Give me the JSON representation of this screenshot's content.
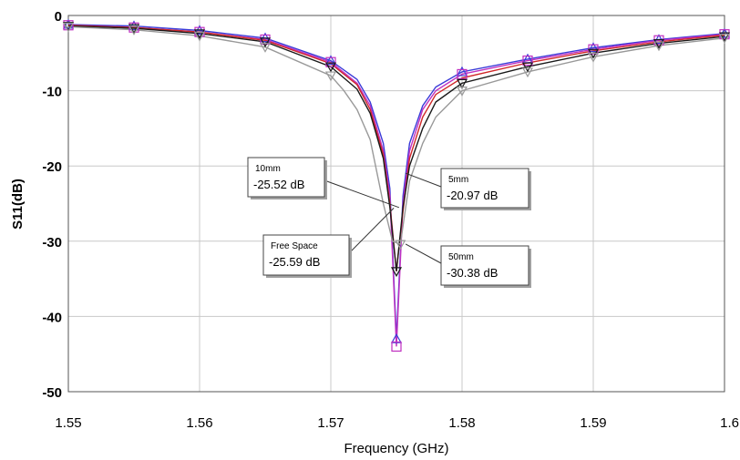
{
  "chart_data": {
    "type": "line",
    "title": "",
    "xlabel": "Frequency (GHz)",
    "ylabel": "S11(dB)",
    "xlim": [
      1.55,
      1.6
    ],
    "ylim": [
      -50,
      0
    ],
    "grid": true,
    "x_tick_labels": [
      "1.55",
      "1.56",
      "1.57",
      "1.58",
      "1.59",
      "1.6"
    ],
    "y_tick_labels": [
      "0",
      "-10",
      "-20",
      "-30",
      "-40",
      "-50"
    ],
    "series": [
      {
        "color": "#3a3ad8",
        "marker": "triangle-up",
        "points": [
          [
            1.55,
            -1.2
          ],
          [
            1.555,
            -1.4
          ],
          [
            1.56,
            -2.0
          ],
          [
            1.565,
            -3.0
          ],
          [
            1.57,
            -6.0
          ],
          [
            1.572,
            -8.5
          ],
          [
            1.573,
            -11.5
          ],
          [
            1.574,
            -17
          ],
          [
            1.5745,
            -23
          ],
          [
            1.575,
            -43
          ],
          [
            1.5755,
            -24
          ],
          [
            1.576,
            -17
          ],
          [
            1.577,
            -12
          ],
          [
            1.578,
            -9.5
          ],
          [
            1.58,
            -7.5
          ],
          [
            1.585,
            -5.8
          ],
          [
            1.59,
            -4.3
          ],
          [
            1.595,
            -3.2
          ],
          [
            1.6,
            -2.4
          ]
        ]
      },
      {
        "color": "#c030c0",
        "marker": "square",
        "points": [
          [
            1.55,
            -1.3
          ],
          [
            1.555,
            -1.6
          ],
          [
            1.56,
            -2.2
          ],
          [
            1.565,
            -3.2
          ],
          [
            1.57,
            -6.2
          ],
          [
            1.572,
            -9
          ],
          [
            1.573,
            -12
          ],
          [
            1.574,
            -18
          ],
          [
            1.5745,
            -24
          ],
          [
            1.575,
            -44
          ],
          [
            1.5755,
            -25
          ],
          [
            1.576,
            -18
          ],
          [
            1.577,
            -12.5
          ],
          [
            1.578,
            -10
          ],
          [
            1.58,
            -7.8
          ],
          [
            1.585,
            -6.0
          ],
          [
            1.59,
            -4.5
          ],
          [
            1.595,
            -3.3
          ],
          [
            1.6,
            -2.5
          ]
        ]
      },
      {
        "color": "#d02828",
        "marker": "none",
        "points": [
          [
            1.55,
            -1.3
          ],
          [
            1.555,
            -1.6
          ],
          [
            1.56,
            -2.2
          ],
          [
            1.565,
            -3.3
          ],
          [
            1.57,
            -6.4
          ],
          [
            1.572,
            -9.2
          ],
          [
            1.573,
            -12.5
          ],
          [
            1.574,
            -18.5
          ],
          [
            1.5745,
            -25
          ],
          [
            1.575,
            -34
          ],
          [
            1.5755,
            -26
          ],
          [
            1.576,
            -19
          ],
          [
            1.577,
            -13.5
          ],
          [
            1.578,
            -10.5
          ],
          [
            1.58,
            -8.3
          ],
          [
            1.585,
            -6.3
          ],
          [
            1.59,
            -4.7
          ],
          [
            1.595,
            -3.5
          ],
          [
            1.6,
            -2.6
          ]
        ]
      },
      {
        "color": "#1a1a1a",
        "marker": "triangle-down",
        "points": [
          [
            1.55,
            -1.4
          ],
          [
            1.555,
            -1.7
          ],
          [
            1.56,
            -2.4
          ],
          [
            1.565,
            -3.5
          ],
          [
            1.57,
            -6.8
          ],
          [
            1.572,
            -9.8
          ],
          [
            1.573,
            -13
          ],
          [
            1.574,
            -19
          ],
          [
            1.5745,
            -25.5
          ],
          [
            1.575,
            -34
          ],
          [
            1.5755,
            -25.5
          ],
          [
            1.576,
            -20
          ],
          [
            1.577,
            -15
          ],
          [
            1.578,
            -11.5
          ],
          [
            1.58,
            -9.0
          ],
          [
            1.585,
            -6.8
          ],
          [
            1.59,
            -5.0
          ],
          [
            1.595,
            -3.7
          ],
          [
            1.6,
            -2.8
          ]
        ]
      },
      {
        "color": "#999999",
        "marker": "triangle-down",
        "points": [
          [
            1.55,
            -1.5
          ],
          [
            1.555,
            -1.9
          ],
          [
            1.56,
            -2.7
          ],
          [
            1.565,
            -4.2
          ],
          [
            1.57,
            -8.0
          ],
          [
            1.571,
            -10.0
          ],
          [
            1.572,
            -12.5
          ],
          [
            1.573,
            -16.5
          ],
          [
            1.574,
            -25
          ],
          [
            1.5747,
            -30
          ],
          [
            1.5753,
            -30.4
          ],
          [
            1.576,
            -22
          ],
          [
            1.577,
            -17
          ],
          [
            1.578,
            -13.5
          ],
          [
            1.58,
            -10.0
          ],
          [
            1.585,
            -7.5
          ],
          [
            1.59,
            -5.5
          ],
          [
            1.595,
            -4.0
          ],
          [
            1.6,
            -3.0
          ]
        ]
      }
    ],
    "annotations": [
      {
        "name": "10mm",
        "value": "-25.52 dB",
        "point": [
          1.5752,
          -25.52
        ]
      },
      {
        "name": "5mm",
        "value": "-20.97 dB",
        "point": [
          1.5757,
          -20.97
        ]
      },
      {
        "name": "Free Space",
        "value": "-25.59 dB",
        "point": [
          1.5748,
          -25.59
        ]
      },
      {
        "name": "50mm",
        "value": "-30.38 dB",
        "point": [
          1.5757,
          -30.38
        ]
      }
    ]
  }
}
